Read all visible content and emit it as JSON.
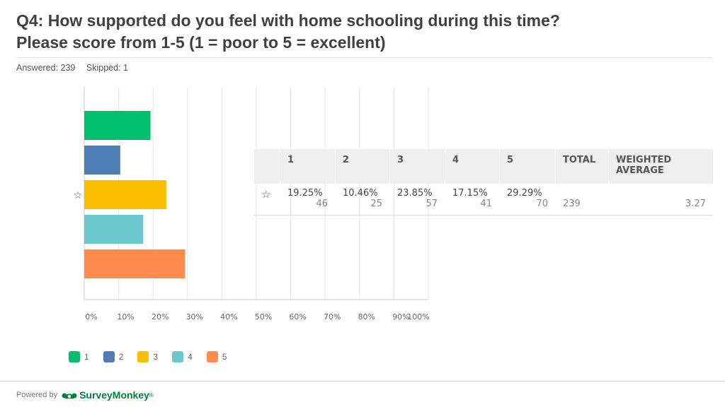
{
  "question": {
    "line1": "Q4: How supported do you feel with home schooling during this time?",
    "line2": "Please score from 1-5 (1 = poor to 5 = excellent)"
  },
  "stats": {
    "answered": "Answered: 239",
    "skipped": "Skipped: 1"
  },
  "chart_data": {
    "type": "bar",
    "orientation": "horizontal",
    "categories": [
      "1",
      "2",
      "3",
      "4",
      "5"
    ],
    "values": [
      19.25,
      10.46,
      23.85,
      17.15,
      29.29
    ],
    "colors": [
      "#00bf6f",
      "#507cb6",
      "#f9be00",
      "#6bc8cd",
      "#ff8b4f"
    ],
    "xlim": [
      0,
      100
    ],
    "xticks": [
      "0%",
      "10%",
      "20%",
      "30%",
      "40%",
      "50%",
      "60%",
      "70%",
      "80%",
      "90%",
      "100%"
    ],
    "grid": true,
    "legend": "bottom-left",
    "row_marker": "☆"
  },
  "table": {
    "headers": [
      "1",
      "2",
      "3",
      "4",
      "5",
      "TOTAL",
      "WEIGHTED AVERAGE"
    ],
    "row": {
      "marker": "☆",
      "percents": [
        "19.25%",
        "10.46%",
        "23.85%",
        "17.15%",
        "29.29%"
      ],
      "counts": [
        "46",
        "25",
        "57",
        "41",
        "70"
      ],
      "total": "239",
      "weighted_average": "3.27"
    }
  },
  "footer": {
    "powered_by": "Powered by",
    "brand": "SurveyMonkey",
    "brand_mark": "®"
  },
  "colors": {
    "brand_green": "#00803b"
  }
}
